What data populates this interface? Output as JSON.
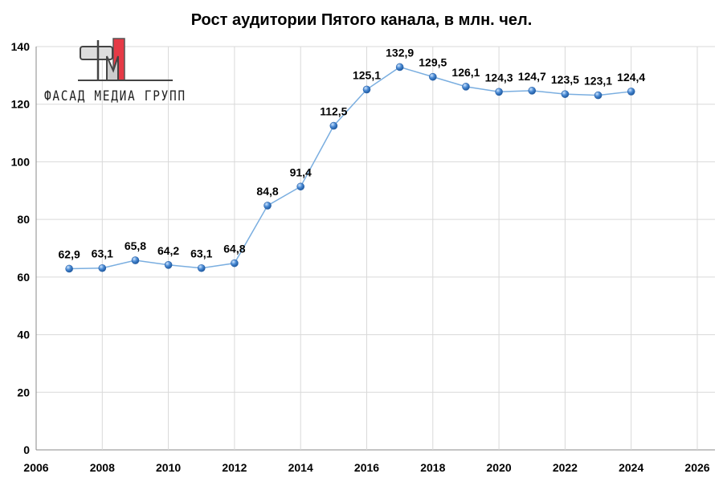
{
  "chart_data": {
    "type": "line",
    "title": "Рост аудитории Пятого канала, в млн. чел.",
    "xlabel": "",
    "ylabel": "",
    "x": [
      2007,
      2008,
      2009,
      2010,
      2011,
      2012,
      2013,
      2014,
      2015,
      2016,
      2017,
      2018,
      2019,
      2020,
      2021,
      2022,
      2023,
      2024
    ],
    "series": [
      {
        "values": [
          62.9,
          63.1,
          65.8,
          64.2,
          63.1,
          64.8,
          84.8,
          91.4,
          112.5,
          125.1,
          132.9,
          129.5,
          126.1,
          124.3,
          124.7,
          123.5,
          123.1,
          124.4
        ]
      }
    ],
    "data_labels": [
      "62,9",
      "63,1",
      "65,8",
      "64,2",
      "63,1",
      "64,8",
      "84,8",
      "91,4",
      "112,5",
      "125,1",
      "132,9",
      "129,5",
      "126,1",
      "124,3",
      "124,7",
      "123,5",
      "123,1",
      "124,4"
    ],
    "xlim": [
      2006,
      2026
    ],
    "ylim": [
      0,
      140
    ],
    "xticks": [
      "2006",
      "2008",
      "2010",
      "2012",
      "2014",
      "2016",
      "2018",
      "2020",
      "2022",
      "2024",
      "2026"
    ],
    "yticks": [
      "0",
      "20",
      "40",
      "60",
      "80",
      "100",
      "120",
      "140"
    ],
    "grid": true,
    "legend": "none",
    "colors": {
      "line": "#7aaee0",
      "marker": "#3a7cc4"
    }
  },
  "logo": {
    "text": "ФАСАД МЕДИА ГРУПП"
  }
}
